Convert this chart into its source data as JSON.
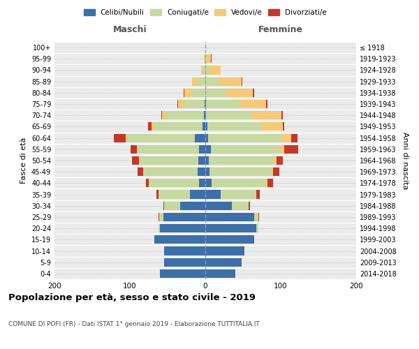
{
  "age_groups": [
    "0-4",
    "5-9",
    "10-14",
    "15-19",
    "20-24",
    "25-29",
    "30-34",
    "35-39",
    "40-44",
    "45-49",
    "50-54",
    "55-59",
    "60-64",
    "65-69",
    "70-74",
    "75-79",
    "80-84",
    "85-89",
    "90-94",
    "95-99",
    "100+"
  ],
  "birth_years": [
    "2014-2018",
    "2009-2013",
    "2004-2008",
    "1999-2003",
    "1994-1998",
    "1989-1993",
    "1984-1988",
    "1979-1983",
    "1974-1978",
    "1969-1973",
    "1964-1968",
    "1959-1963",
    "1954-1958",
    "1949-1953",
    "1944-1948",
    "1939-1943",
    "1934-1938",
    "1929-1933",
    "1924-1928",
    "1919-1923",
    "≤ 1918"
  ],
  "males": {
    "celibe": [
      60,
      55,
      55,
      68,
      60,
      56,
      33,
      20,
      8,
      10,
      9,
      8,
      14,
      4,
      2,
      1,
      0,
      0,
      0,
      0,
      0
    ],
    "coniugato": [
      0,
      0,
      0,
      0,
      2,
      5,
      22,
      42,
      67,
      72,
      79,
      82,
      90,
      64,
      50,
      27,
      18,
      10,
      3,
      1,
      0
    ],
    "vedovo": [
      0,
      0,
      0,
      0,
      0,
      0,
      0,
      0,
      0,
      0,
      0,
      1,
      2,
      3,
      5,
      8,
      10,
      8,
      3,
      1,
      0
    ],
    "divorziato": [
      0,
      0,
      0,
      0,
      0,
      1,
      1,
      3,
      4,
      8,
      9,
      8,
      15,
      5,
      1,
      1,
      1,
      0,
      0,
      0,
      0
    ]
  },
  "females": {
    "nubile": [
      40,
      48,
      52,
      65,
      68,
      65,
      35,
      20,
      8,
      6,
      5,
      7,
      4,
      3,
      1,
      1,
      0,
      0,
      0,
      0,
      0
    ],
    "coniugata": [
      0,
      0,
      0,
      0,
      2,
      5,
      22,
      48,
      73,
      82,
      86,
      92,
      98,
      72,
      60,
      45,
      28,
      18,
      5,
      2,
      0
    ],
    "vedova": [
      0,
      0,
      0,
      0,
      0,
      0,
      0,
      0,
      1,
      2,
      3,
      6,
      12,
      28,
      40,
      35,
      35,
      30,
      15,
      5,
      0
    ],
    "divorziata": [
      0,
      0,
      0,
      0,
      0,
      1,
      2,
      4,
      8,
      8,
      9,
      18,
      8,
      2,
      2,
      1,
      2,
      1,
      0,
      1,
      0
    ]
  },
  "color_celibe": "#3d6fa8",
  "color_coniugato": "#c5d9a0",
  "color_vedovo": "#f5c97a",
  "color_divorziato": "#c0392b",
  "title": "Popolazione per età, sesso e stato civile - 2019",
  "subtitle": "COMUNE DI POFI (FR) - Dati ISTAT 1° gennaio 2019 - Elaborazione TUTTITALIA.IT",
  "xlabel_left": "Maschi",
  "xlabel_right": "Femmine",
  "ylabel_left": "Fasce di età",
  "ylabel_right": "Anni di nascita",
  "xlim": 200,
  "bg_color": "#ebebeb"
}
